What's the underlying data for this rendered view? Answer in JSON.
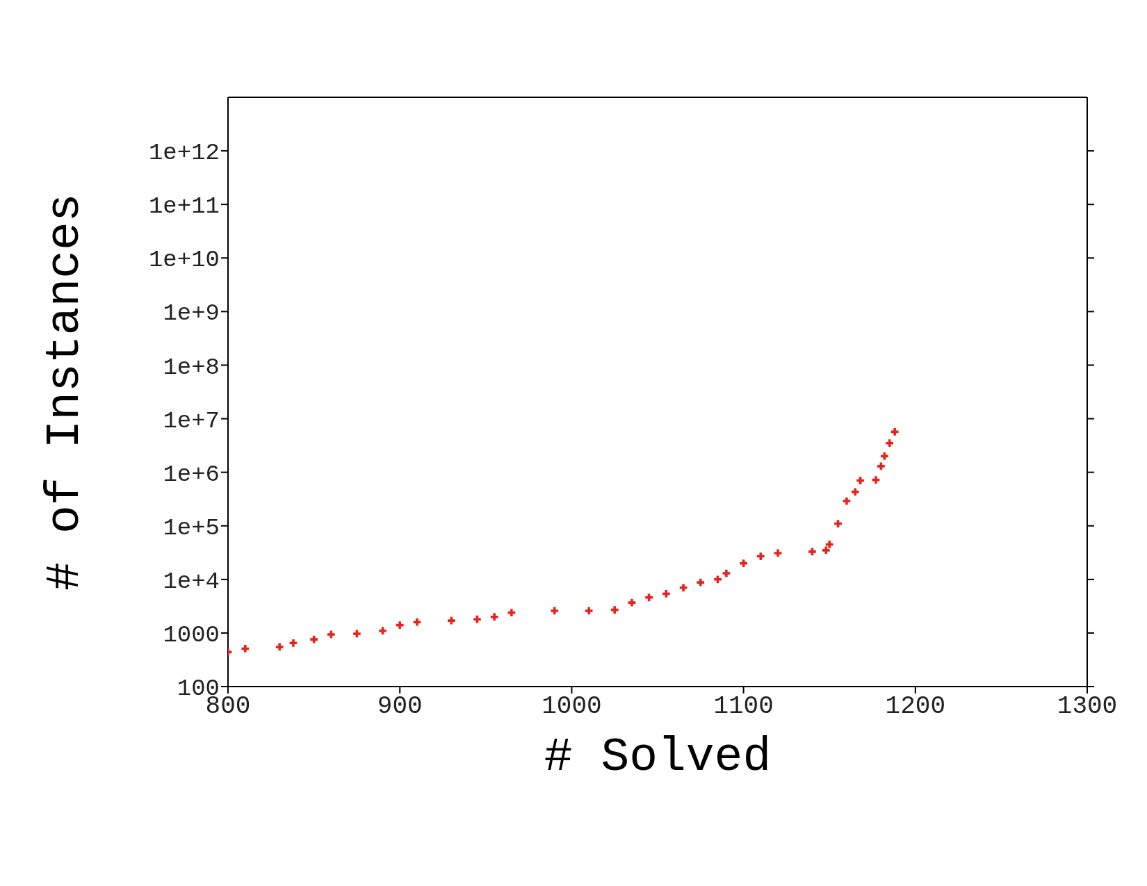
{
  "chart_data": {
    "type": "scatter",
    "xlabel": "# Solved",
    "ylabel": "# of Instances",
    "x": [
      800,
      810,
      830,
      838,
      850,
      860,
      875,
      890,
      900,
      910,
      930,
      945,
      955,
      965,
      990,
      1010,
      1025,
      1035,
      1045,
      1055,
      1065,
      1075,
      1085,
      1090,
      1100,
      1110,
      1120,
      1140,
      1148,
      1150,
      1155,
      1160,
      1165,
      1168,
      1177,
      1180,
      1182,
      1185,
      1188
    ],
    "series": [
      {
        "color": "#e8221a",
        "values": [
          440,
          510,
          550,
          650,
          760,
          940,
          970,
          1100,
          1400,
          1600,
          1700,
          1800,
          2000,
          2400,
          2600,
          2600,
          2700,
          3700,
          4600,
          5400,
          7000,
          8800,
          10000,
          13000,
          20000,
          27000,
          31000,
          33000,
          35000,
          45000,
          110000,
          290000,
          430000,
          700000,
          720000,
          1300000,
          2000000,
          3500000,
          5700000
        ]
      }
    ],
    "log": "y",
    "xlim": [
      800,
      1300
    ],
    "xticks": [
      800,
      900,
      1000,
      1100,
      1200,
      1300
    ],
    "ylim": [
      100,
      10000000000000
    ],
    "yticks": [
      100,
      1000,
      {
        "value": 10000,
        "label": "1e+4"
      },
      {
        "value": 100000,
        "label": "1e+5"
      },
      {
        "value": 1000000,
        "label": "1e+6"
      },
      {
        "value": 10000000,
        "label": "1e+7"
      },
      {
        "value": 100000000,
        "label": "1e+8"
      },
      {
        "value": 1000000000,
        "label": "1e+9"
      },
      {
        "value": 10000000000,
        "label": "1e+10"
      },
      {
        "value": 100000000000,
        "label": "1e+11"
      },
      {
        "value": 1000000000000,
        "label": "1e+12"
      }
    ],
    "marker": "cross"
  }
}
